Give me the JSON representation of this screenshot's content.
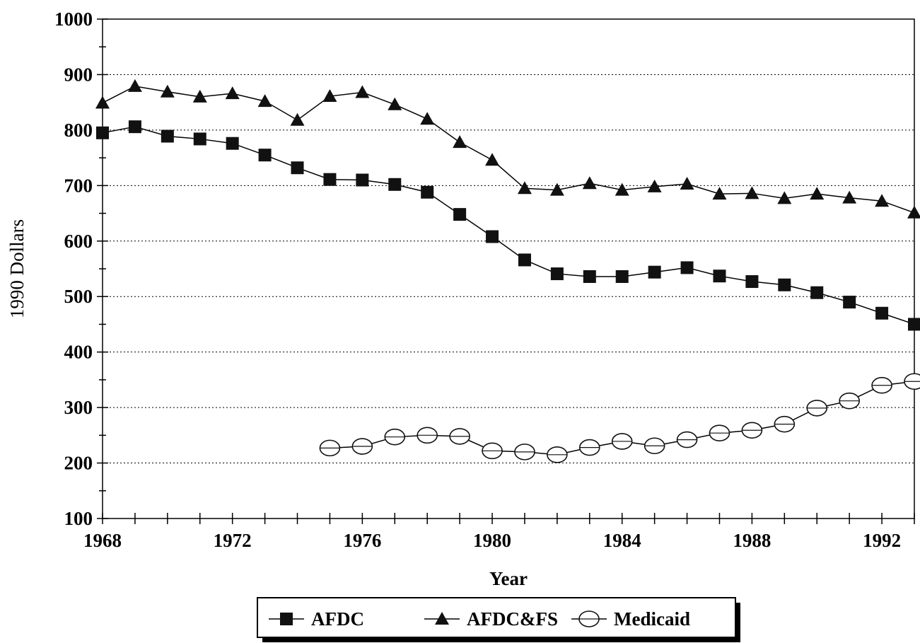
{
  "chart_data": {
    "type": "line",
    "title": "",
    "xlabel": "Year",
    "ylabel": "1990 Dollars",
    "xlim": [
      1968,
      1993
    ],
    "ylim": [
      100,
      1000
    ],
    "x_ticks": [
      1968,
      1972,
      1976,
      1980,
      1984,
      1988,
      1992
    ],
    "y_ticks": [
      100,
      200,
      300,
      400,
      500,
      600,
      700,
      800,
      900,
      1000
    ],
    "grid": "horizontal dotted",
    "legend_position": "bottom-center",
    "x": [
      1968,
      1969,
      1970,
      1971,
      1972,
      1973,
      1974,
      1975,
      1976,
      1977,
      1978,
      1979,
      1980,
      1981,
      1982,
      1983,
      1984,
      1985,
      1986,
      1987,
      1988,
      1989,
      1990,
      1991,
      1992,
      1993
    ],
    "series": [
      {
        "name": "AFDC",
        "marker": "square",
        "values": [
          795,
          806,
          789,
          784,
          776,
          755,
          732,
          711,
          710,
          702,
          688,
          648,
          608,
          566,
          541,
          536,
          536,
          544,
          552,
          537,
          527,
          521,
          507,
          490,
          470,
          450
        ]
      },
      {
        "name": "AFDC&FS",
        "marker": "triangle",
        "values": [
          849,
          879,
          869,
          860,
          866,
          852,
          818,
          861,
          868,
          846,
          820,
          778,
          746,
          695,
          692,
          704,
          692,
          698,
          703,
          685,
          686,
          677,
          685,
          678,
          672,
          651
        ]
      },
      {
        "name": "Medicaid",
        "marker": "open-circle",
        "values": [
          null,
          null,
          null,
          null,
          null,
          null,
          null,
          227,
          230,
          247,
          250,
          248,
          222,
          220,
          215,
          228,
          239,
          231,
          242,
          254,
          259,
          270,
          299,
          312,
          340,
          347
        ]
      }
    ]
  }
}
